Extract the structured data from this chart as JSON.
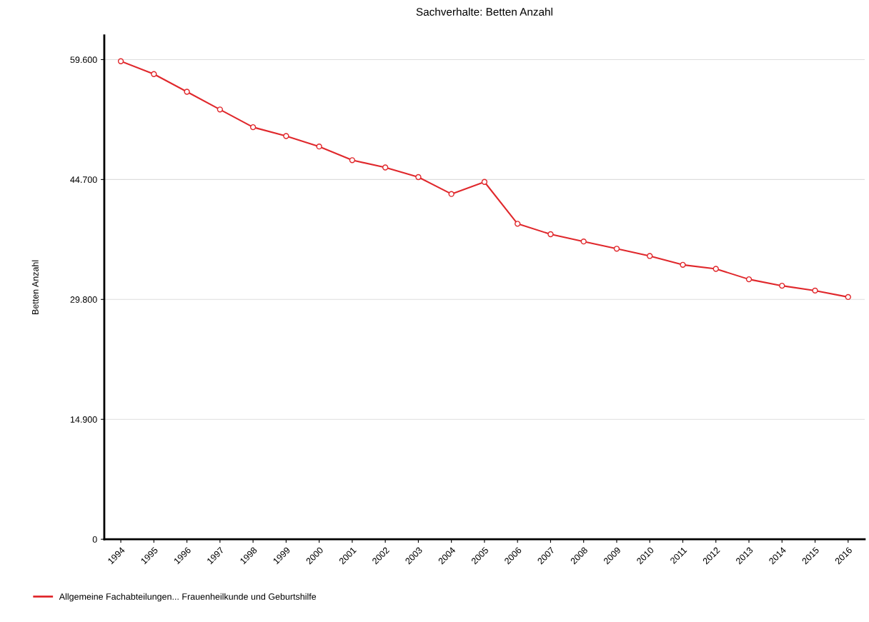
{
  "chart_data": {
    "type": "line",
    "title": "Sachverhalte: Betten Anzahl",
    "ylabel": "Betten Anzahl",
    "categories": [
      "1994",
      "1995",
      "1996",
      "1997",
      "1998",
      "1999",
      "2000",
      "2001",
      "2002",
      "2003",
      "2004",
      "2005",
      "2006",
      "2007",
      "2008",
      "2009",
      "2010",
      "2011",
      "2012",
      "2013",
      "2014",
      "2015",
      "2016"
    ],
    "series": [
      {
        "name": "Allgemeine Fachabteilungen... Frauenheilkunde und Geburtshilfe",
        "color": "#e0282c",
        "values": [
          59400,
          57800,
          55600,
          53400,
          51200,
          50100,
          48800,
          47100,
          46200,
          45000,
          42900,
          44400,
          39200,
          37900,
          37000,
          36100,
          35200,
          34100,
          33600,
          32300,
          31500,
          30900,
          30100
        ]
      }
    ],
    "ylim": [
      0,
      62600
    ],
    "yticks": [
      {
        "value": 0,
        "label": "0"
      },
      {
        "value": 14900,
        "label": "14.900"
      },
      {
        "value": 29800,
        "label": "29.800"
      },
      {
        "value": 44700,
        "label": "44.700"
      },
      {
        "value": 59600,
        "label": "59.600"
      }
    ],
    "grid": "y",
    "legend": "bottom left",
    "marker": "circle",
    "line_style": "solid"
  }
}
